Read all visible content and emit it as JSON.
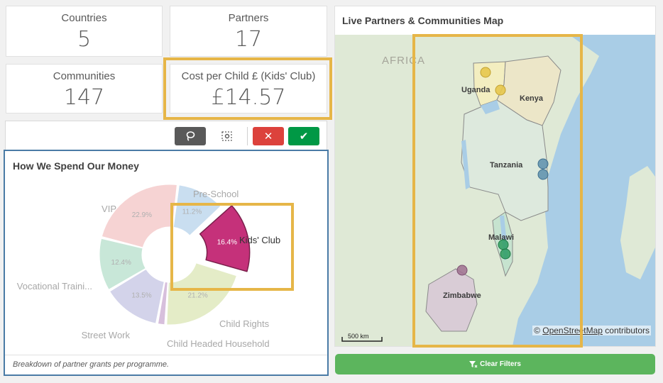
{
  "kpis": {
    "countries": {
      "title": "Countries",
      "value": "5"
    },
    "partners": {
      "title": "Partners",
      "value": "17"
    },
    "communities": {
      "title": "Communities",
      "value": "147"
    },
    "cost": {
      "title": "Cost per Child £ (Kids' Club)",
      "value": "£14.57"
    }
  },
  "toolbar": {
    "lasso_icon": "lasso-icon",
    "select_icon": "select-area-icon",
    "cancel_icon": "close-icon",
    "confirm_icon": "check-icon",
    "cancel_glyph": "✕",
    "confirm_glyph": "✔"
  },
  "pie": {
    "title": "How We Spend Our Money",
    "footer": "Breakdown of partner grants per programme."
  },
  "chart_data": {
    "type": "pie",
    "title": "How We Spend Our Money",
    "donut": true,
    "selected": "Kids' Club",
    "slices": [
      {
        "label": "Pre-School",
        "value": 11.2,
        "value_label": "11.2%",
        "color": "#c9def0"
      },
      {
        "label": "Kids' Club",
        "value": 16.4,
        "value_label": "16.4%",
        "color": "#c5317a"
      },
      {
        "label": "Child Rights",
        "value": 21.2,
        "value_label": "21.2%",
        "color": "#e4ecc7"
      },
      {
        "label": "Child Headed Household",
        "value": 2.0,
        "value_label": "",
        "color": "#d7bfdc"
      },
      {
        "label": "Street Work",
        "value": 13.5,
        "value_label": "13.5%",
        "color": "#d3d3ea"
      },
      {
        "label": "Vocational Traini...",
        "value": 12.4,
        "value_label": "12.4%",
        "color": "#c8e7d8"
      },
      {
        "label": "VIP",
        "value": 22.9,
        "value_label": "22.9%",
        "color": "#f6d3d3"
      }
    ]
  },
  "map": {
    "title": "Live Partners & Communities Map",
    "region_label": "AFRICA",
    "countries": [
      "Uganda",
      "Kenya",
      "Tanzania",
      "Malawi",
      "Zimbabwe"
    ],
    "scale": "500 km",
    "attribution_prefix": "© ",
    "attribution_link": "OpenStreetMap",
    "attribution_suffix": " contributors",
    "colors": {
      "uganda": "#e7c74c",
      "tanzania": "#5c8fad",
      "malawi": "#2e9c5f",
      "zimbabwe": "#a07090"
    }
  },
  "clear_filters": {
    "icon": "filter-clear-icon",
    "label": "Clear Filters"
  }
}
